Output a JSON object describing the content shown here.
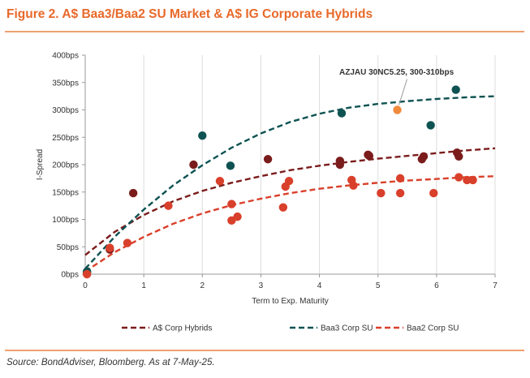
{
  "figure": {
    "title": "Figure 2. A$ Baa3/Baa2 SU Market & A$ IG Corporate Hybrids",
    "source": "Source: BondAdviser, Bloomberg. As at 7-May-25."
  },
  "colors": {
    "title": "#e8692a",
    "rule": "#f0a070",
    "hybrids": "#7b1c1c",
    "baa3": "#0f5252",
    "baa2": "#d9402b",
    "highlight": "#f08a3c",
    "grid": "#dddddd"
  },
  "chart_data": {
    "type": "scatter",
    "xlabel": "Term to Exp. Maturity",
    "ylabel": "I-Spread",
    "xlim": [
      0,
      7
    ],
    "ylim": [
      0,
      400
    ],
    "x_ticks": [
      "0",
      "1",
      "2",
      "3",
      "4",
      "5",
      "6",
      "7"
    ],
    "y_ticks": [
      "0bps",
      "50bps",
      "100bps",
      "150bps",
      "200bps",
      "250bps",
      "300bps",
      "350bps",
      "400bps"
    ],
    "grid": "vertical",
    "legend_position": "bottom",
    "annotation": {
      "text": "AZJAU 30NC5.25, 300-310bps",
      "x": 5.33,
      "y": 300
    },
    "series": [
      {
        "name": "A$ Corp Hybrids",
        "color_key": "hybrids",
        "points": [
          [
            0.03,
            3
          ],
          [
            0.42,
            45
          ],
          [
            0.82,
            148
          ],
          [
            1.85,
            200
          ],
          [
            3.12,
            210
          ],
          [
            4.35,
            207
          ],
          [
            4.35,
            200
          ],
          [
            4.83,
            218
          ],
          [
            4.85,
            216
          ],
          [
            5.75,
            210
          ],
          [
            5.78,
            215
          ],
          [
            6.35,
            222
          ],
          [
            6.38,
            215
          ]
        ],
        "trend": [
          [
            0,
            35
          ],
          [
            0.5,
            77
          ],
          [
            1,
            108
          ],
          [
            1.5,
            133
          ],
          [
            2,
            152
          ],
          [
            2.5,
            167
          ],
          [
            3,
            179
          ],
          [
            3.5,
            190
          ],
          [
            4,
            198
          ],
          [
            4.5,
            205
          ],
          [
            5,
            211
          ],
          [
            5.5,
            216
          ],
          [
            6,
            221
          ],
          [
            6.5,
            226
          ],
          [
            7,
            230
          ]
        ]
      },
      {
        "name": "Baa3 Corp SU",
        "color_key": "baa3",
        "points": [
          [
            0.03,
            5
          ],
          [
            2.0,
            253
          ],
          [
            2.48,
            198
          ],
          [
            4.38,
            294
          ],
          [
            5.9,
            272
          ],
          [
            6.33,
            337
          ]
        ],
        "trend": [
          [
            0,
            10
          ],
          [
            0.5,
            68
          ],
          [
            1,
            118
          ],
          [
            1.5,
            162
          ],
          [
            2,
            199
          ],
          [
            2.5,
            231
          ],
          [
            3,
            257
          ],
          [
            3.5,
            278
          ],
          [
            4,
            293
          ],
          [
            4.5,
            304
          ],
          [
            5,
            311
          ],
          [
            5.5,
            316
          ],
          [
            6,
            320
          ],
          [
            6.5,
            323
          ],
          [
            7,
            325
          ]
        ]
      },
      {
        "name": "Baa2 Corp SU",
        "color_key": "baa2",
        "points": [
          [
            0.03,
            0
          ],
          [
            0.42,
            48
          ],
          [
            0.72,
            57
          ],
          [
            1.42,
            125
          ],
          [
            2.3,
            170
          ],
          [
            2.5,
            128
          ],
          [
            2.5,
            98
          ],
          [
            2.6,
            105
          ],
          [
            3.38,
            122
          ],
          [
            3.42,
            160
          ],
          [
            3.48,
            170
          ],
          [
            4.55,
            172
          ],
          [
            4.58,
            162
          ],
          [
            5.05,
            148
          ],
          [
            5.38,
            175
          ],
          [
            5.38,
            148
          ],
          [
            5.95,
            148
          ],
          [
            6.38,
            177
          ],
          [
            6.52,
            172
          ],
          [
            6.62,
            172
          ]
        ],
        "trend": [
          [
            0,
            5
          ],
          [
            0.5,
            40
          ],
          [
            1,
            68
          ],
          [
            1.5,
            92
          ],
          [
            2,
            111
          ],
          [
            2.5,
            126
          ],
          [
            3,
            138
          ],
          [
            3.5,
            148
          ],
          [
            4,
            156
          ],
          [
            4.5,
            162
          ],
          [
            5,
            167
          ],
          [
            5.5,
            171
          ],
          [
            6,
            174
          ],
          [
            6.5,
            177
          ],
          [
            7,
            179
          ]
        ]
      }
    ],
    "highlight_point": {
      "x": 5.33,
      "y": 300,
      "color_key": "highlight"
    }
  }
}
